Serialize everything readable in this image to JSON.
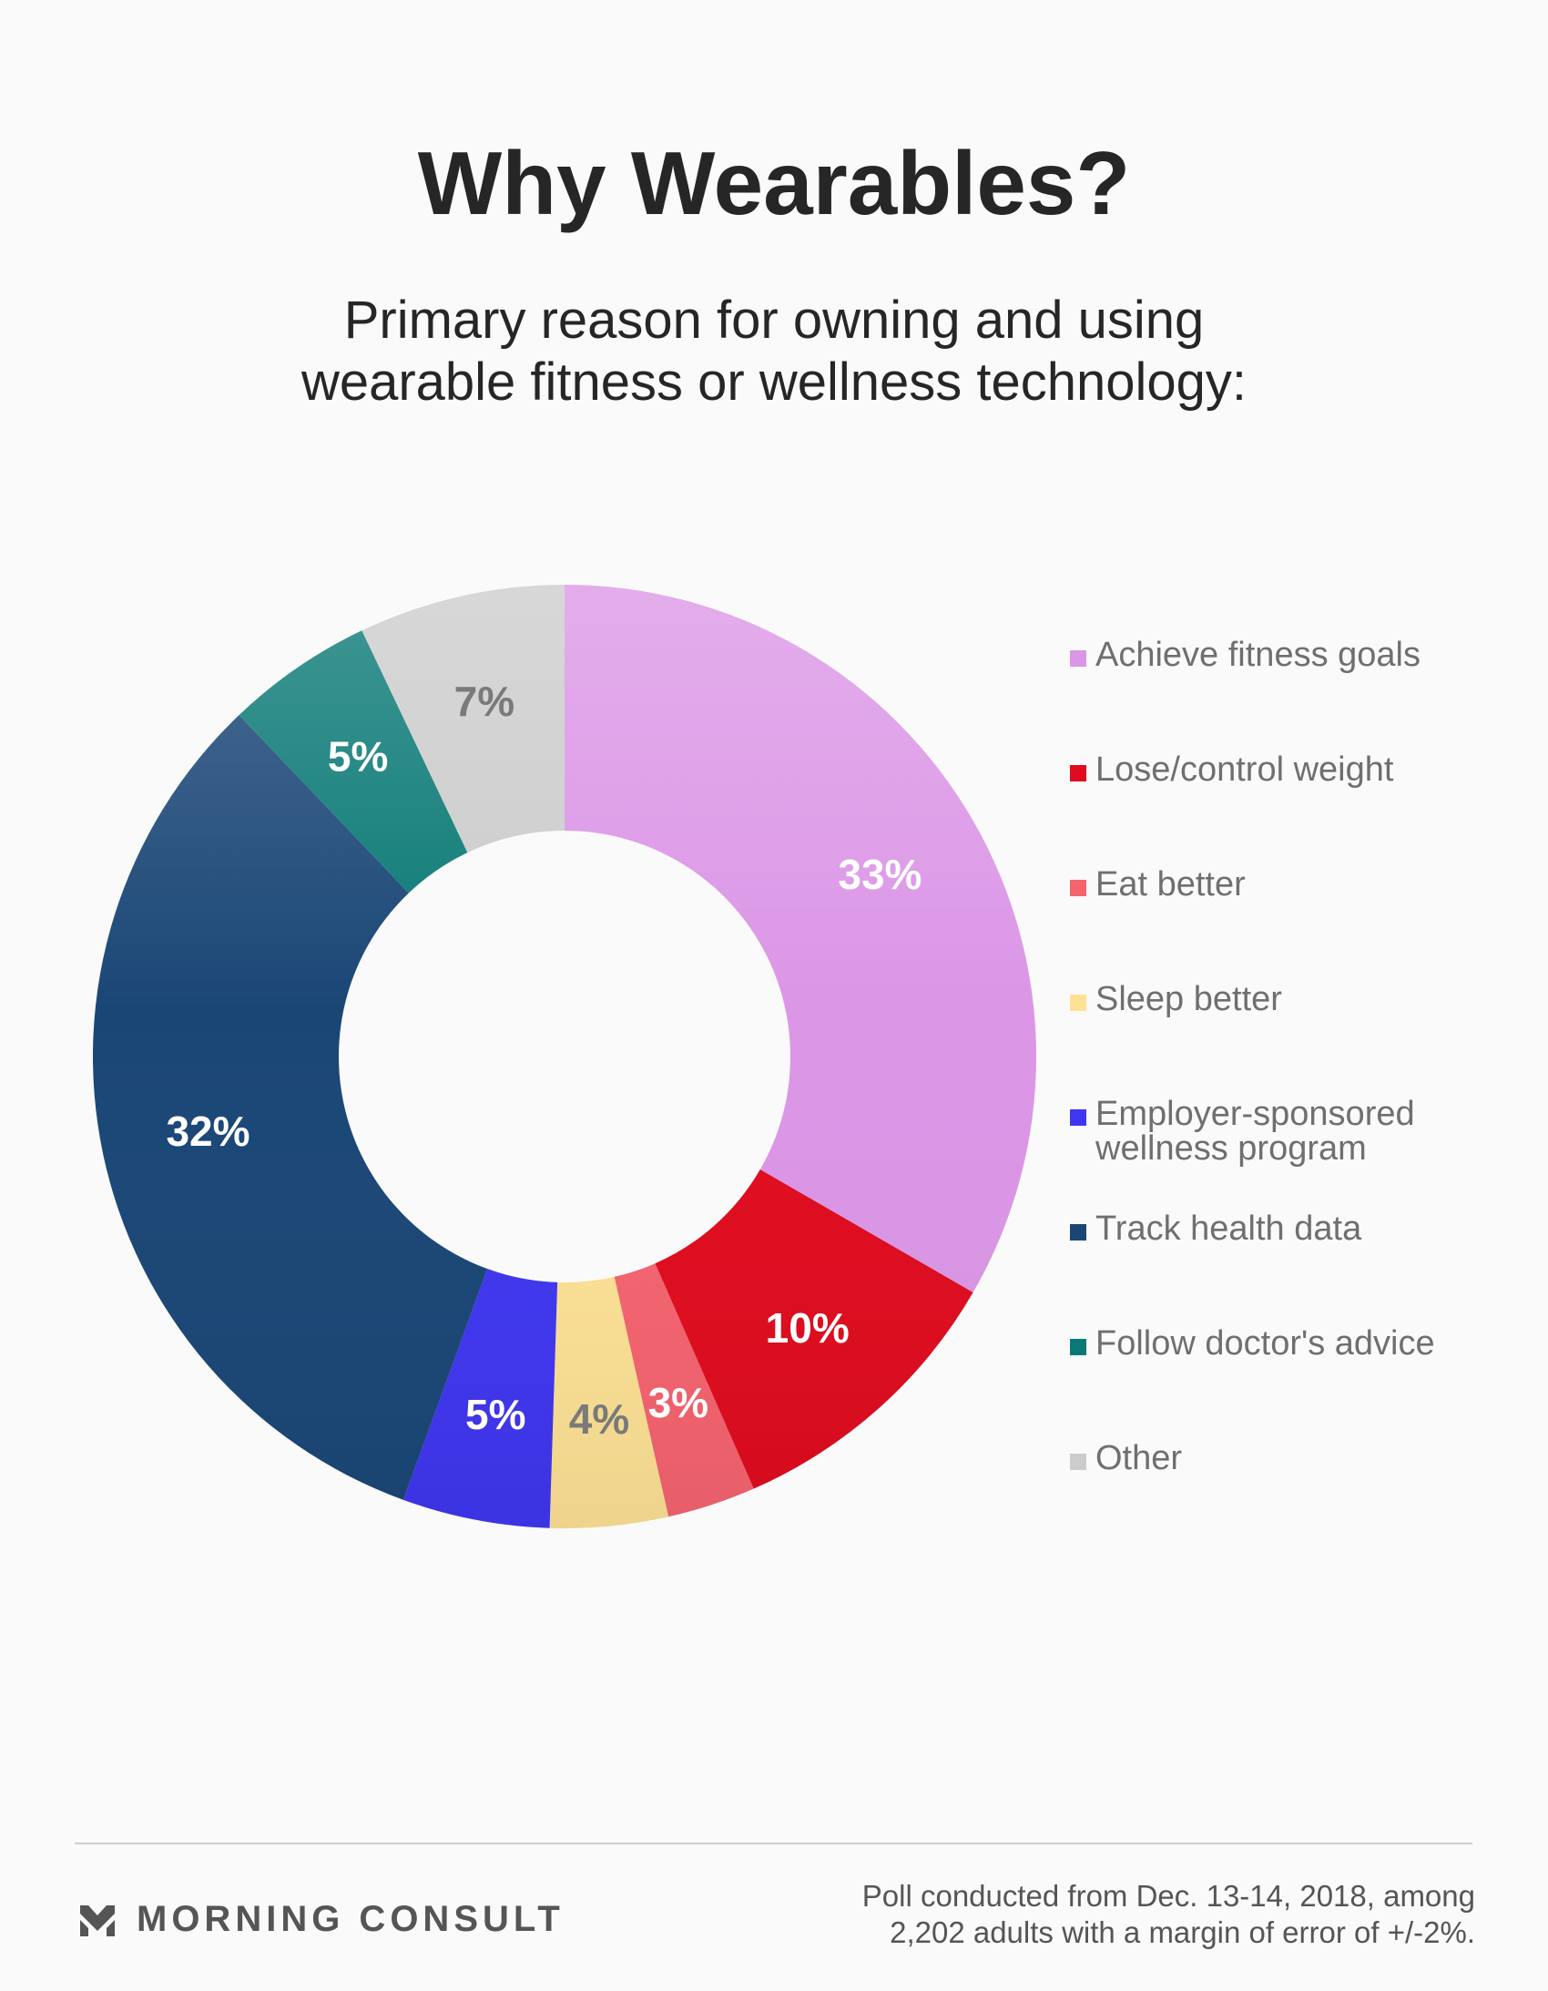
{
  "header": {
    "title": "Why Wearables?",
    "subtitle_lines": [
      "Primary reason for owning and using",
      "wearable fitness or wellness technology:"
    ]
  },
  "chart_data": {
    "type": "pie",
    "donut": true,
    "title": "Why Wearables?",
    "subtitle": "Primary reason for owning and using wearable fitness or wellness technology:",
    "legend_position": "right",
    "slices": [
      {
        "label": "Achieve fitness goals",
        "value": 33,
        "display": "33%",
        "color": "#db96e6",
        "label_color": "#ffffff"
      },
      {
        "label": "Lose/control weight",
        "value": 10,
        "display": "10%",
        "color": "#e00b1e",
        "label_color": "#ffffff"
      },
      {
        "label": "Eat better",
        "value": 3,
        "display": "3%",
        "color": "#f5636f",
        "label_color": "#ffffff"
      },
      {
        "label": "Sleep better",
        "value": 4,
        "display": "4%",
        "color": "#fde195",
        "label_color": "#7a7a7a"
      },
      {
        "label": "Employer-sponsored wellness program",
        "label_lines": [
          "Employer-sponsored",
          "wellness program"
        ],
        "value": 5,
        "display": "5%",
        "color": "#3f36f0",
        "label_color": "#ffffff"
      },
      {
        "label": "Track health data",
        "value": 32,
        "display": "32%",
        "color": "#1a4676",
        "label_color": "#ffffff"
      },
      {
        "label": "Follow doctor's advice",
        "value": 5,
        "display": "5%",
        "color": "#0a7975",
        "label_color": "#ffffff"
      },
      {
        "label": "Other",
        "value": 7,
        "display": "7%",
        "color": "#cccccc",
        "label_color": "#7a7a7a"
      }
    ]
  },
  "footer": {
    "brand": "MORNING CONSULT",
    "note_lines": [
      "Poll conducted from Dec. 13-14, 2018, among",
      "2,202 adults with a margin of error of +/-2%."
    ]
  }
}
